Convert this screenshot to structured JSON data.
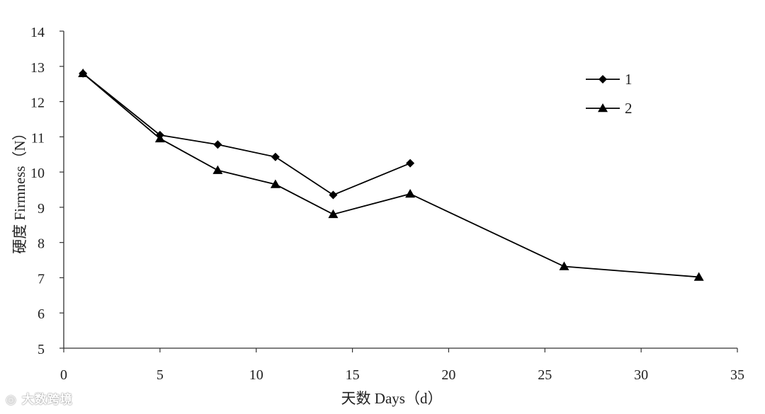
{
  "chart_data": {
    "type": "line",
    "xlabel": "天数 Days（d）",
    "ylabel": "硬度 Firmness（N）",
    "xlim": [
      0,
      35
    ],
    "ylim": [
      5,
      14
    ],
    "x_ticks": [
      "0",
      "5",
      "10",
      "15",
      "20",
      "25",
      "30",
      "35"
    ],
    "y_ticks": [
      "5",
      "6",
      "7",
      "8",
      "9",
      "10",
      "11",
      "12",
      "13",
      "14"
    ],
    "grid": false,
    "legend_position": "top-right",
    "series": [
      {
        "name": "1",
        "marker": "diamond",
        "color": "#000000",
        "points": [
          {
            "x": 1,
            "y": 12.8
          },
          {
            "x": 5,
            "y": 11.05
          },
          {
            "x": 8,
            "y": 10.78
          },
          {
            "x": 11,
            "y": 10.43
          },
          {
            "x": 14,
            "y": 9.35
          },
          {
            "x": 18,
            "y": 10.25
          }
        ]
      },
      {
        "name": "2",
        "marker": "triangle",
        "color": "#000000",
        "points": [
          {
            "x": 1,
            "y": 12.8
          },
          {
            "x": 5,
            "y": 10.95
          },
          {
            "x": 8,
            "y": 10.05
          },
          {
            "x": 11,
            "y": 9.65
          },
          {
            "x": 14,
            "y": 8.8
          },
          {
            "x": 18,
            "y": 9.38
          },
          {
            "x": 26,
            "y": 7.32
          },
          {
            "x": 33,
            "y": 7.02
          }
        ]
      }
    ]
  },
  "watermark": {
    "text": "大数跨境"
  }
}
